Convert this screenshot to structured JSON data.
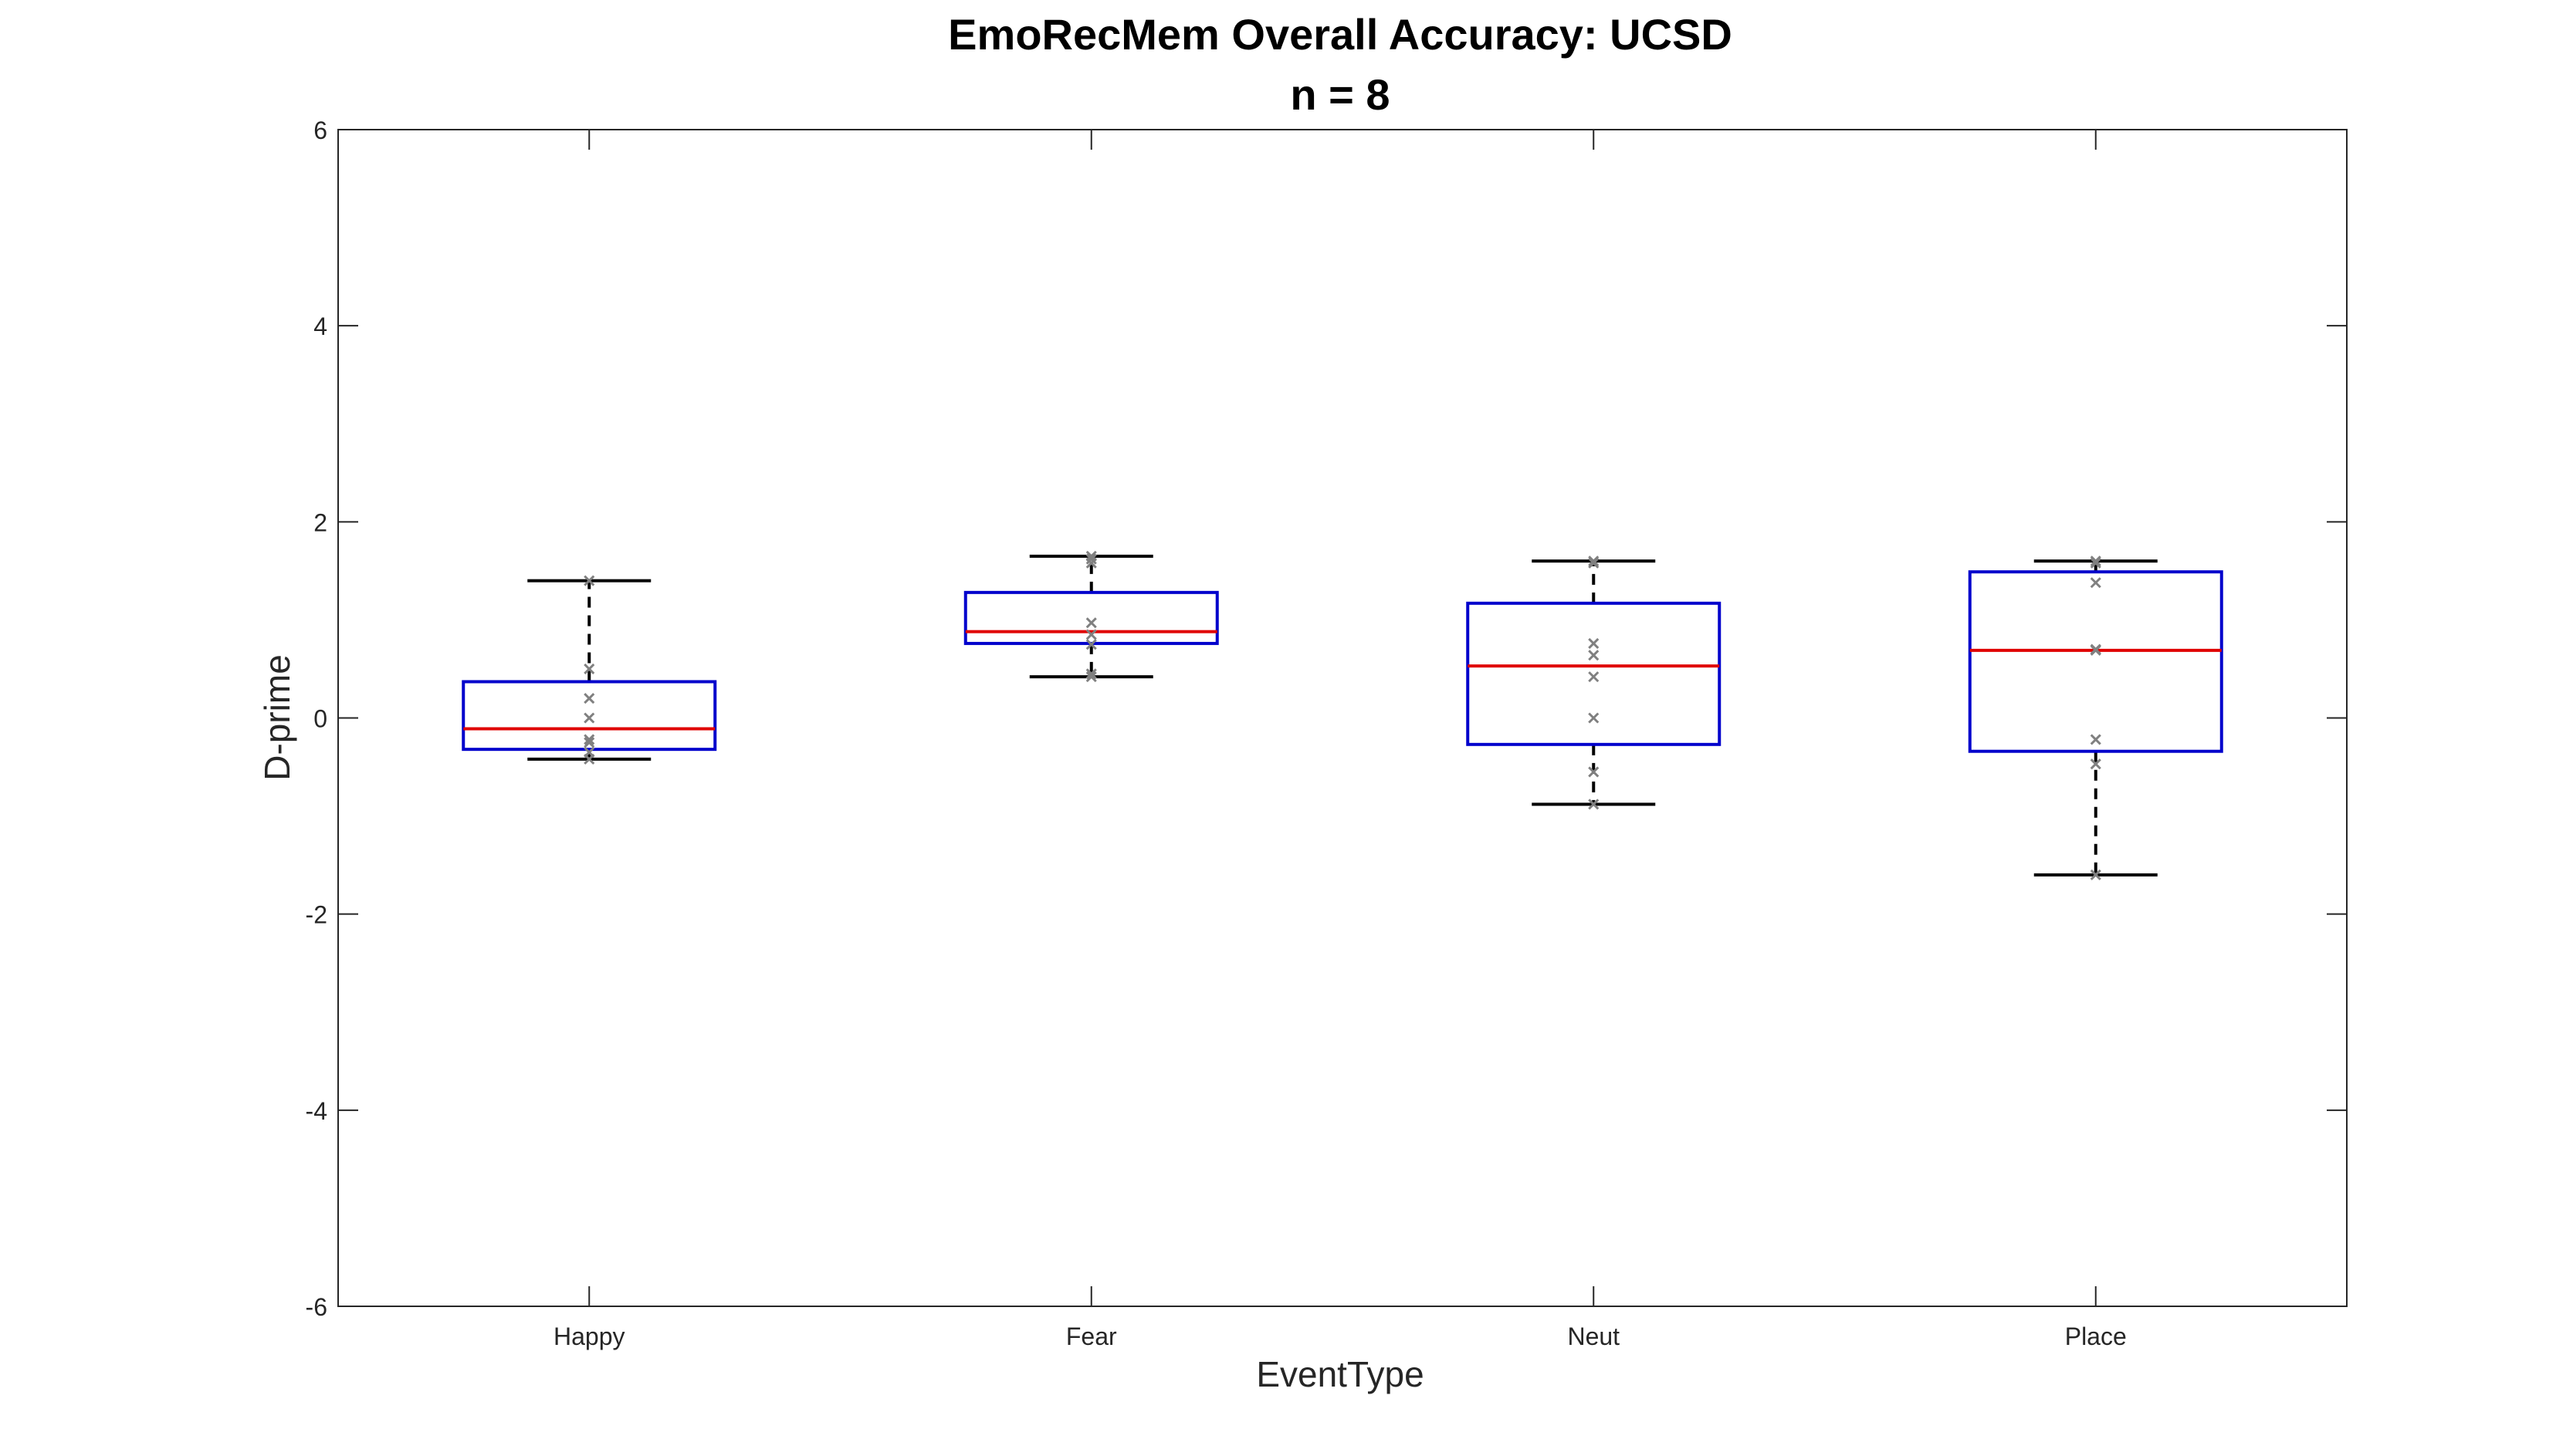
{
  "chart_data": {
    "type": "boxplot",
    "title": "EmoRecMem Overall Accuracy: UCSD",
    "subtitle": "n = 8",
    "xlabel": "EventType",
    "ylabel": "D-prime",
    "ylim": [
      -6,
      6
    ],
    "yticks": [
      -6,
      -4,
      -2,
      0,
      2,
      4,
      6
    ],
    "grid": false,
    "categories": [
      "Happy",
      "Fear",
      "Neut",
      "Place"
    ],
    "boxes": [
      {
        "category": "Happy",
        "whisker_low": -0.42,
        "q1": -0.32,
        "median": -0.11,
        "q3": 0.37,
        "whisker_high": 1.4,
        "points": [
          -0.42,
          -0.25,
          -0.22,
          0.0,
          0.2,
          0.5,
          1.4,
          -0.35
        ]
      },
      {
        "category": "Fear",
        "whisker_low": 0.42,
        "q1": 0.76,
        "median": 0.88,
        "q3": 1.28,
        "whisker_high": 1.65,
        "points": [
          0.42,
          0.45,
          0.75,
          0.85,
          0.97,
          1.58,
          1.62,
          1.65
        ]
      },
      {
        "category": "Neut",
        "whisker_low": -0.88,
        "q1": -0.27,
        "median": 0.53,
        "q3": 1.17,
        "whisker_high": 1.6,
        "points": [
          -0.88,
          -0.55,
          0.0,
          0.42,
          0.64,
          0.76,
          1.58,
          1.6
        ]
      },
      {
        "category": "Place",
        "whisker_low": -1.6,
        "q1": -0.34,
        "median": 0.69,
        "q3": 1.49,
        "whisker_high": 1.6,
        "points": [
          -1.6,
          -0.47,
          -0.22,
          0.69,
          0.7,
          1.38,
          1.58,
          1.6
        ]
      }
    ],
    "colors": {
      "box": "#0000cc",
      "median": "#e00000",
      "whisker": "#000000",
      "points": "#808080",
      "axis": "#262626"
    }
  }
}
